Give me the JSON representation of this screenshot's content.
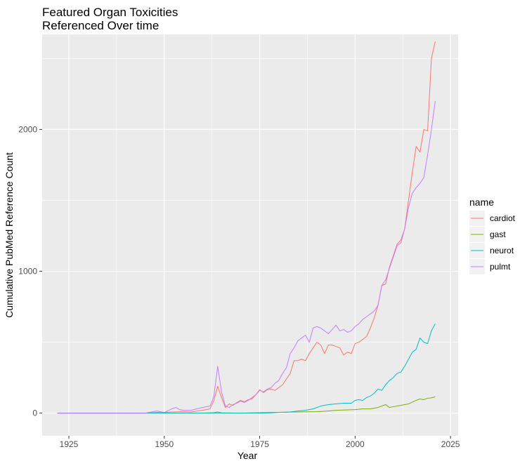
{
  "chart_data": {
    "type": "line",
    "title": [
      "Featured Organ Toxicities",
      "Referenced Over time"
    ],
    "xlabel": "Year",
    "ylabel": "Cumulative PubMed Reference Count",
    "xlim": [
      1918,
      2027
    ],
    "ylim": [
      -160,
      2670
    ],
    "x_ticks": [
      1925,
      1950,
      1975,
      2000,
      2025
    ],
    "y_ticks": [
      0,
      1000,
      2000
    ],
    "grid": true,
    "legend": {
      "title": "name",
      "position": "right"
    },
    "series": [
      {
        "name": "cardiot",
        "color": "#F8766D",
        "points": [
          [
            1922,
            0
          ],
          [
            1930,
            0
          ],
          [
            1940,
            0
          ],
          [
            1945,
            0
          ],
          [
            1948,
            5
          ],
          [
            1950,
            5
          ],
          [
            1952,
            8
          ],
          [
            1955,
            10
          ],
          [
            1957,
            8
          ],
          [
            1960,
            20
          ],
          [
            1962,
            30
          ],
          [
            1963,
            90
          ],
          [
            1964,
            190
          ],
          [
            1965,
            110
          ],
          [
            1966,
            40
          ],
          [
            1967,
            65
          ],
          [
            1968,
            55
          ],
          [
            1969,
            75
          ],
          [
            1970,
            90
          ],
          [
            1971,
            80
          ],
          [
            1972,
            95
          ],
          [
            1973,
            100
          ],
          [
            1974,
            130
          ],
          [
            1975,
            165
          ],
          [
            1976,
            145
          ],
          [
            1977,
            165
          ],
          [
            1978,
            170
          ],
          [
            1979,
            160
          ],
          [
            1980,
            180
          ],
          [
            1981,
            200
          ],
          [
            1982,
            240
          ],
          [
            1983,
            280
          ],
          [
            1984,
            370
          ],
          [
            1985,
            370
          ],
          [
            1986,
            380
          ],
          [
            1987,
            370
          ],
          [
            1988,
            420
          ],
          [
            1989,
            460
          ],
          [
            1990,
            500
          ],
          [
            1991,
            480
          ],
          [
            1992,
            420
          ],
          [
            1993,
            480
          ],
          [
            1994,
            480
          ],
          [
            1995,
            470
          ],
          [
            1996,
            460
          ],
          [
            1997,
            410
          ],
          [
            1998,
            430
          ],
          [
            1999,
            420
          ],
          [
            2000,
            490
          ],
          [
            2001,
            500
          ],
          [
            2002,
            520
          ],
          [
            2003,
            540
          ],
          [
            2004,
            600
          ],
          [
            2005,
            670
          ],
          [
            2006,
            760
          ],
          [
            2007,
            900
          ],
          [
            2008,
            910
          ],
          [
            2009,
            1030
          ],
          [
            2010,
            1110
          ],
          [
            2011,
            1190
          ],
          [
            2012,
            1220
          ],
          [
            2013,
            1300
          ],
          [
            2014,
            1500
          ],
          [
            2015,
            1700
          ],
          [
            2016,
            1880
          ],
          [
            2017,
            1840
          ],
          [
            2018,
            2000
          ],
          [
            2019,
            1990
          ],
          [
            2020,
            2500
          ],
          [
            2021,
            2620
          ]
        ]
      },
      {
        "name": "gast",
        "color": "#7CAE00",
        "points": [
          [
            1922,
            0
          ],
          [
            1940,
            0
          ],
          [
            1950,
            0
          ],
          [
            1960,
            0
          ],
          [
            1963,
            3
          ],
          [
            1964,
            8
          ],
          [
            1965,
            2
          ],
          [
            1970,
            0
          ],
          [
            1975,
            3
          ],
          [
            1978,
            5
          ],
          [
            1980,
            6
          ],
          [
            1985,
            8
          ],
          [
            1990,
            10
          ],
          [
            1993,
            15
          ],
          [
            1995,
            20
          ],
          [
            1997,
            22
          ],
          [
            2000,
            25
          ],
          [
            2002,
            30
          ],
          [
            2004,
            30
          ],
          [
            2006,
            40
          ],
          [
            2008,
            60
          ],
          [
            2009,
            40
          ],
          [
            2010,
            45
          ],
          [
            2012,
            55
          ],
          [
            2014,
            65
          ],
          [
            2016,
            90
          ],
          [
            2017,
            100
          ],
          [
            2018,
            95
          ],
          [
            2019,
            105
          ],
          [
            2020,
            108
          ],
          [
            2021,
            115
          ]
        ]
      },
      {
        "name": "neurot",
        "color": "#00BFC4",
        "points": [
          [
            1922,
            0
          ],
          [
            1940,
            0
          ],
          [
            1945,
            0
          ],
          [
            1950,
            0
          ],
          [
            1960,
            0
          ],
          [
            1965,
            0
          ],
          [
            1970,
            0
          ],
          [
            1975,
            0
          ],
          [
            1978,
            2
          ],
          [
            1980,
            5
          ],
          [
            1983,
            8
          ],
          [
            1985,
            15
          ],
          [
            1987,
            20
          ],
          [
            1989,
            30
          ],
          [
            1991,
            50
          ],
          [
            1993,
            60
          ],
          [
            1995,
            65
          ],
          [
            1997,
            70
          ],
          [
            1999,
            70
          ],
          [
            2000,
            90
          ],
          [
            2001,
            95
          ],
          [
            2002,
            90
          ],
          [
            2003,
            110
          ],
          [
            2004,
            120
          ],
          [
            2005,
            140
          ],
          [
            2006,
            170
          ],
          [
            2007,
            160
          ],
          [
            2008,
            200
          ],
          [
            2009,
            230
          ],
          [
            2010,
            250
          ],
          [
            2011,
            280
          ],
          [
            2012,
            290
          ],
          [
            2013,
            330
          ],
          [
            2014,
            380
          ],
          [
            2015,
            430
          ],
          [
            2016,
            450
          ],
          [
            2017,
            530
          ],
          [
            2018,
            500
          ],
          [
            2019,
            490
          ],
          [
            2020,
            580
          ],
          [
            2021,
            630
          ]
        ]
      },
      {
        "name": "pulmt",
        "color": "#C77CFF",
        "points": [
          [
            1922,
            0
          ],
          [
            1930,
            0
          ],
          [
            1940,
            0
          ],
          [
            1945,
            0
          ],
          [
            1947,
            10
          ],
          [
            1948,
            15
          ],
          [
            1950,
            5
          ],
          [
            1952,
            30
          ],
          [
            1953,
            40
          ],
          [
            1954,
            25
          ],
          [
            1955,
            20
          ],
          [
            1957,
            20
          ],
          [
            1960,
            40
          ],
          [
            1962,
            50
          ],
          [
            1963,
            120
          ],
          [
            1964,
            330
          ],
          [
            1965,
            150
          ],
          [
            1966,
            50
          ],
          [
            1967,
            40
          ],
          [
            1968,
            60
          ],
          [
            1969,
            70
          ],
          [
            1970,
            85
          ],
          [
            1971,
            75
          ],
          [
            1972,
            90
          ],
          [
            1973,
            110
          ],
          [
            1974,
            130
          ],
          [
            1975,
            160
          ],
          [
            1976,
            150
          ],
          [
            1977,
            170
          ],
          [
            1978,
            180
          ],
          [
            1979,
            210
          ],
          [
            1980,
            230
          ],
          [
            1981,
            280
          ],
          [
            1982,
            320
          ],
          [
            1983,
            420
          ],
          [
            1984,
            460
          ],
          [
            1985,
            510
          ],
          [
            1986,
            530
          ],
          [
            1987,
            550
          ],
          [
            1988,
            500
          ],
          [
            1989,
            600
          ],
          [
            1990,
            610
          ],
          [
            1991,
            600
          ],
          [
            1992,
            580
          ],
          [
            1993,
            560
          ],
          [
            1994,
            590
          ],
          [
            1995,
            620
          ],
          [
            1996,
            580
          ],
          [
            1997,
            590
          ],
          [
            1998,
            570
          ],
          [
            1999,
            580
          ],
          [
            2000,
            610
          ],
          [
            2001,
            630
          ],
          [
            2002,
            660
          ],
          [
            2003,
            680
          ],
          [
            2004,
            700
          ],
          [
            2005,
            720
          ],
          [
            2006,
            760
          ],
          [
            2007,
            900
          ],
          [
            2008,
            940
          ],
          [
            2009,
            1020
          ],
          [
            2010,
            1100
          ],
          [
            2011,
            1180
          ],
          [
            2012,
            1200
          ],
          [
            2013,
            1300
          ],
          [
            2014,
            1450
          ],
          [
            2015,
            1550
          ],
          [
            2016,
            1590
          ],
          [
            2017,
            1620
          ],
          [
            2018,
            1660
          ],
          [
            2019,
            1820
          ],
          [
            2020,
            2000
          ],
          [
            2021,
            2200
          ]
        ]
      }
    ]
  }
}
